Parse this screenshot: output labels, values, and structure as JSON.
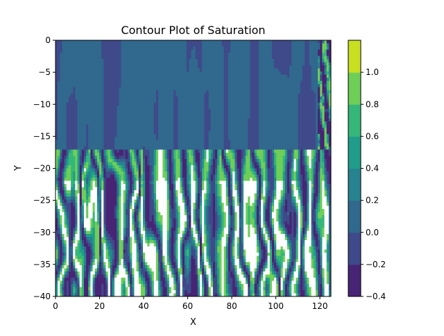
{
  "chart_data": {
    "type": "heatmap",
    "title": "Contour Plot of Saturation",
    "xlabel": "X",
    "ylabel": "Y",
    "xlim": [
      0,
      125
    ],
    "ylim": [
      -40,
      0
    ],
    "x_ticks": [
      0,
      20,
      40,
      60,
      80,
      100,
      120
    ],
    "y_ticks": [
      0,
      -5,
      -10,
      -15,
      -20,
      -25,
      -30,
      -35,
      -40
    ],
    "colorbar": {
      "levels": [
        -0.4,
        -0.2,
        0.0,
        0.2,
        0.4,
        0.6,
        0.8,
        1.0
      ],
      "tick_labels": [
        "−0.4",
        "−0.2",
        "0.0",
        "0.2",
        "0.4",
        "0.6",
        "0.8",
        "1.0"
      ],
      "colors": [
        "#482475",
        "#3e4a89",
        "#31688e",
        "#26838f",
        "#1f9d8a",
        "#35b779",
        "#6ece58",
        "#c8e020"
      ]
    },
    "regions": [
      {
        "y_range": [
          -15,
          0
        ],
        "description": "mostly 0.0–0.2 with patches of -0.2–0.0"
      },
      {
        "y_range": [
          -40,
          -17
        ],
        "description": "banded mix of -0.2 to >1.0 (white)"
      }
    ],
    "above_max_color": "#ffffff",
    "grid": false
  }
}
